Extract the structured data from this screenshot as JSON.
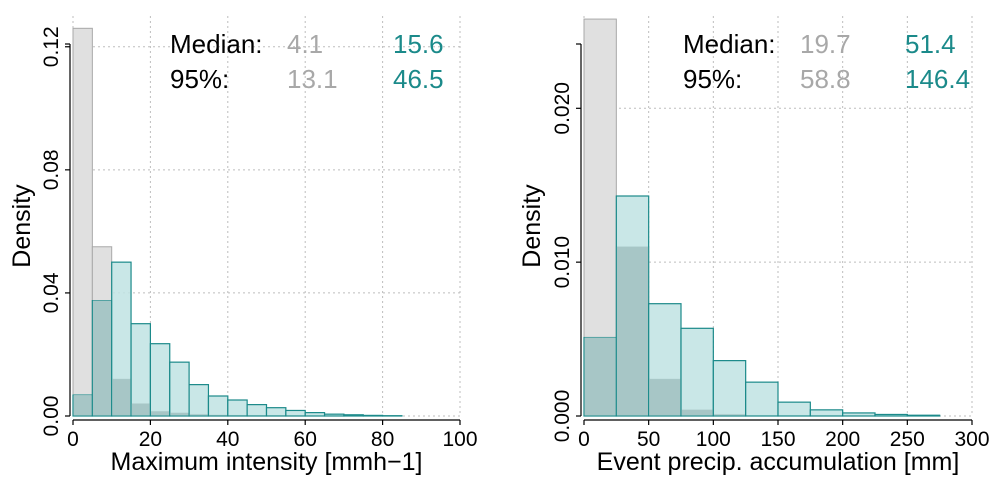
{
  "colors": {
    "gray_fill": "#e0e0e0",
    "gray_stroke": "#a8a8a8",
    "teal_fill": "#bfe3e3",
    "teal_overlap": "#a7c6c6",
    "teal_stroke": "#1b8a8a",
    "teal_text": "#1b8a8a",
    "gray_text": "#a8a8a8",
    "grid": "#bdbdbd"
  },
  "chart_data": [
    {
      "type": "bar",
      "subtype": "overlaid-histogram",
      "xlabel": "Maximum intensity [mmh−1]",
      "ylabel": "Density",
      "xlim": [
        0,
        100
      ],
      "ylim": [
        0,
        0.13
      ],
      "xticks": [
        "0",
        "20",
        "40",
        "60",
        "80",
        "100"
      ],
      "yticks": [
        "0.00",
        "0.04",
        "0.08",
        "0.12"
      ],
      "ytick_values": [
        0,
        0.04,
        0.08,
        0.12
      ],
      "xtick_values": [
        0,
        20,
        40,
        60,
        80,
        100
      ],
      "grid": true,
      "bin_edges": [
        0,
        5,
        10,
        15,
        20,
        25,
        30,
        35,
        40,
        45,
        50,
        55,
        60,
        65,
        70,
        75,
        80,
        85,
        90,
        95,
        100
      ],
      "series": [
        {
          "color": "gray",
          "values": [
            0.126,
            0.055,
            0.012,
            0.004,
            0.0015,
            0.001,
            0.0005,
            0.0003,
            0.0002,
            0.0001,
            0.0001,
            0,
            0,
            0,
            0,
            0,
            0,
            0,
            0,
            0
          ]
        },
        {
          "color": "teal",
          "values": [
            0.0068,
            0.0375,
            0.05,
            0.03,
            0.0235,
            0.0175,
            0.0102,
            0.0065,
            0.0052,
            0.0037,
            0.0027,
            0.0018,
            0.0011,
            0.0006,
            0.0004,
            0.0002,
            0.0001,
            0,
            0,
            0
          ]
        }
      ],
      "stats": {
        "median_label": "Median:",
        "p95_label": "95%:",
        "median_gray": "4.1",
        "median_teal": "15.6",
        "p95_gray": "13.1",
        "p95_teal": "46.5"
      }
    },
    {
      "type": "bar",
      "subtype": "overlaid-histogram",
      "xlabel": "Event precip. accumulation [mm]",
      "ylabel": "Density",
      "xlim": [
        0,
        300
      ],
      "ylim": [
        0,
        0.026
      ],
      "xticks": [
        "0",
        "50",
        "100",
        "150",
        "200",
        "250",
        "300"
      ],
      "yticks": [
        "0.000",
        "0.010",
        "0.020"
      ],
      "ytick_values": [
        0,
        0.01,
        0.02
      ],
      "xtick_values": [
        0,
        50,
        100,
        150,
        200,
        250,
        300
      ],
      "grid": true,
      "bin_edges": [
        0,
        25,
        50,
        75,
        100,
        125,
        150,
        175,
        200,
        225,
        250,
        275,
        300
      ],
      "series": [
        {
          "color": "gray",
          "values": [
            0.0258,
            0.011,
            0.0024,
            0.0004,
            0.0001,
            0,
            0,
            0,
            0,
            0,
            0,
            0
          ]
        },
        {
          "color": "teal",
          "values": [
            0.0051,
            0.0143,
            0.0073,
            0.0057,
            0.0036,
            0.0022,
            0.0009,
            0.0004,
            0.0002,
            0.0001,
            5e-05,
            0
          ]
        }
      ],
      "stats": {
        "median_label": "Median:",
        "p95_label": "95%:",
        "median_gray": "19.7",
        "median_teal": "51.4",
        "p95_gray": "58.8",
        "p95_teal": "146.4"
      }
    }
  ]
}
